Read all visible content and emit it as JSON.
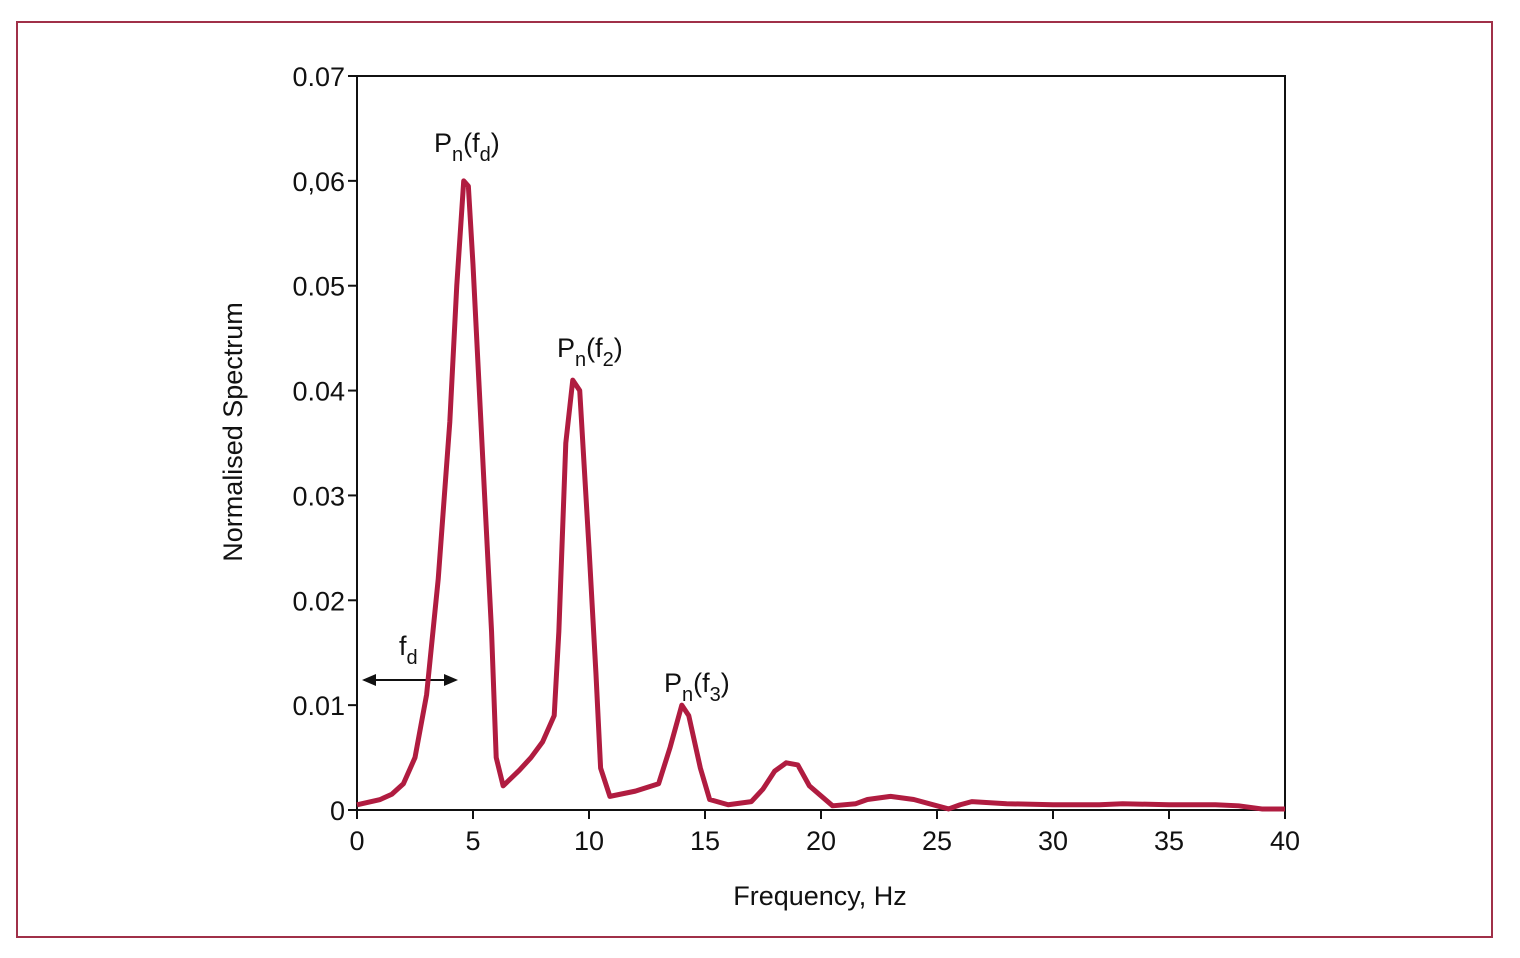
{
  "chart_data": {
    "type": "line",
    "xlabel": "Frequency, Hz",
    "ylabel": "Normalised Spectrum",
    "x": [
      0,
      1,
      1.5,
      2,
      2.5,
      3,
      3.5,
      4,
      4.3,
      4.6,
      4.8,
      5,
      5.5,
      5.8,
      6,
      6.3,
      7,
      7.5,
      8,
      8.5,
      8.7,
      9,
      9.3,
      9.6,
      10,
      10.3,
      10.5,
      10.9,
      12,
      13,
      13.5,
      14,
      14.3,
      14.8,
      15.2,
      16,
      17,
      17.5,
      18,
      18.5,
      19,
      19.5,
      20.5,
      21.5,
      22,
      23,
      24,
      25,
      25.5,
      26,
      26.5,
      28,
      30,
      32,
      33,
      35,
      37,
      38,
      39,
      40
    ],
    "series": [
      {
        "color": "#b01c40",
        "values": [
          0.0005,
          0.001,
          0.0015,
          0.0025,
          0.005,
          0.011,
          0.022,
          0.037,
          0.05,
          0.06,
          0.0595,
          0.052,
          0.03,
          0.017,
          0.005,
          0.0023,
          0.0038,
          0.005,
          0.0065,
          0.009,
          0.017,
          0.035,
          0.041,
          0.04,
          0.025,
          0.013,
          0.004,
          0.0013,
          0.0018,
          0.0025,
          0.006,
          0.01,
          0.009,
          0.004,
          0.001,
          0.0005,
          0.0008,
          0.002,
          0.0037,
          0.0045,
          0.0043,
          0.0023,
          0.0004,
          0.0006,
          0.001,
          0.0013,
          0.001,
          0.0004,
          0.0001,
          0.0005,
          0.0008,
          0.0006,
          0.0005,
          0.0005,
          0.0006,
          0.0005,
          0.0005,
          0.0004,
          0.0001,
          0.0001
        ]
      }
    ],
    "xlim": [
      0,
      40
    ],
    "xticks": [
      0,
      5,
      10,
      15,
      20,
      25,
      30,
      35,
      40
    ],
    "ylim": [
      0,
      0.07
    ],
    "yticks": [
      0,
      0.01,
      0.02,
      0.03,
      0.04,
      0.05,
      {
        "value": 0.06,
        "label": "0,06"
      },
      0.07
    ],
    "annotations": [
      {
        "parts": [
          "P",
          "n",
          "(f",
          "d",
          ")"
        ]
      },
      {
        "parts": [
          "P",
          "n",
          "(f",
          "2",
          ")"
        ]
      },
      {
        "parts": [
          "P",
          "n",
          "(f",
          "3",
          ")"
        ]
      },
      {
        "parts": [
          "f",
          "d"
        ]
      }
    ]
  }
}
